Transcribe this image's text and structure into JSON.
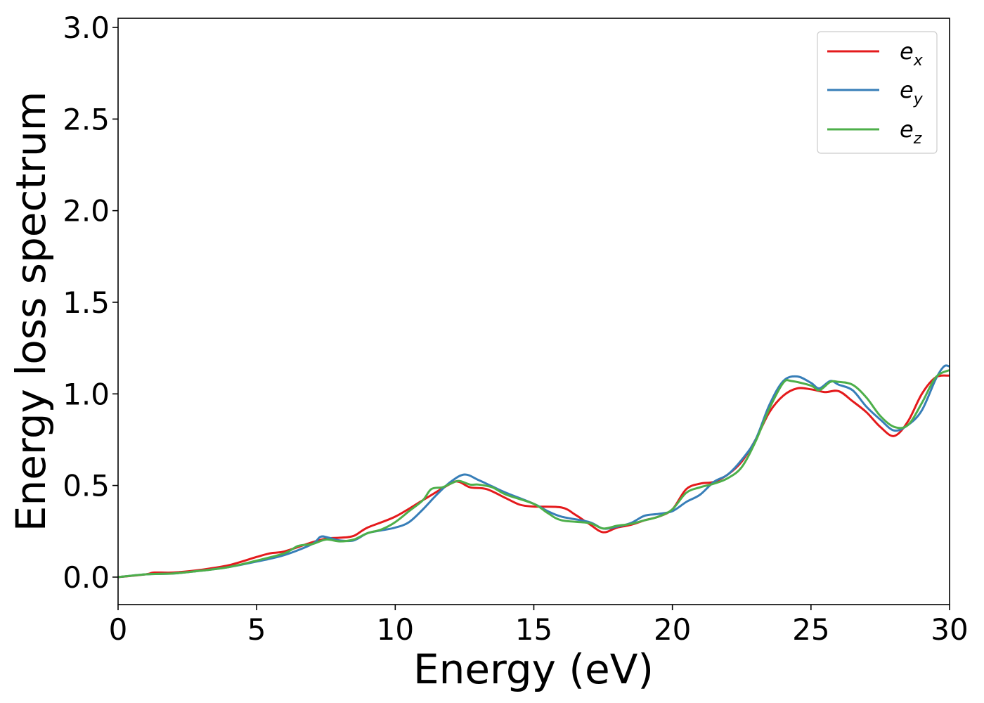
{
  "chart_data": {
    "type": "line",
    "title": "",
    "xlabel": "Energy (eV)",
    "ylabel": "Energy loss spectrum",
    "xlim": [
      0,
      30
    ],
    "ylim": [
      -0.15,
      3.05
    ],
    "xticks": [
      0,
      5,
      10,
      15,
      20,
      25,
      30
    ],
    "xtick_labels": [
      "0",
      "5",
      "10",
      "15",
      "20",
      "25",
      "30"
    ],
    "yticks": [
      0.0,
      0.5,
      1.0,
      1.5,
      2.0,
      2.5,
      3.0
    ],
    "ytick_labels": [
      "0.0",
      "0.5",
      "1.0",
      "1.5",
      "2.0",
      "2.5",
      "3.0"
    ],
    "grid": false,
    "legend_position": "top-right",
    "series": [
      {
        "name": "e_x",
        "legend_base": "e",
        "legend_sub": "x",
        "color": "#e41a1c",
        "points": [
          [
            0,
            0.0
          ],
          [
            1,
            0.015
          ],
          [
            1.3,
            0.025
          ],
          [
            2,
            0.025
          ],
          [
            3,
            0.04
          ],
          [
            4,
            0.065
          ],
          [
            5,
            0.11
          ],
          [
            5.5,
            0.13
          ],
          [
            6,
            0.14
          ],
          [
            7,
            0.19
          ],
          [
            7.5,
            0.21
          ],
          [
            8,
            0.215
          ],
          [
            8.5,
            0.225
          ],
          [
            9,
            0.27
          ],
          [
            10,
            0.33
          ],
          [
            11,
            0.42
          ],
          [
            12,
            0.51
          ],
          [
            12.3,
            0.52
          ],
          [
            12.7,
            0.49
          ],
          [
            13.3,
            0.48
          ],
          [
            14,
            0.43
          ],
          [
            14.5,
            0.395
          ],
          [
            15,
            0.385
          ],
          [
            16,
            0.38
          ],
          [
            16.5,
            0.34
          ],
          [
            17,
            0.29
          ],
          [
            17.5,
            0.245
          ],
          [
            18,
            0.27
          ],
          [
            18.5,
            0.285
          ],
          [
            19,
            0.31
          ],
          [
            19.5,
            0.33
          ],
          [
            20,
            0.37
          ],
          [
            20.5,
            0.48
          ],
          [
            21,
            0.51
          ],
          [
            21.5,
            0.52
          ],
          [
            22,
            0.56
          ],
          [
            22.5,
            0.63
          ],
          [
            23,
            0.75
          ],
          [
            23.5,
            0.9
          ],
          [
            24,
            0.99
          ],
          [
            24.5,
            1.03
          ],
          [
            25,
            1.025
          ],
          [
            25.5,
            1.01
          ],
          [
            26,
            1.015
          ],
          [
            26.5,
            0.96
          ],
          [
            27,
            0.9
          ],
          [
            27.5,
            0.82
          ],
          [
            28,
            0.77
          ],
          [
            28.5,
            0.85
          ],
          [
            29,
            1.0
          ],
          [
            29.5,
            1.09
          ],
          [
            30,
            1.1
          ]
        ]
      },
      {
        "name": "e_y",
        "legend_base": "e",
        "legend_sub": "y",
        "color": "#377eb8",
        "points": [
          [
            0,
            0.0
          ],
          [
            1,
            0.015
          ],
          [
            2,
            0.02
          ],
          [
            3,
            0.035
          ],
          [
            4,
            0.055
          ],
          [
            5,
            0.085
          ],
          [
            6,
            0.12
          ],
          [
            7,
            0.18
          ],
          [
            7.3,
            0.22
          ],
          [
            7.6,
            0.215
          ],
          [
            8,
            0.2
          ],
          [
            8.5,
            0.2
          ],
          [
            9,
            0.24
          ],
          [
            9.5,
            0.255
          ],
          [
            10,
            0.27
          ],
          [
            10.5,
            0.3
          ],
          [
            11,
            0.37
          ],
          [
            11.5,
            0.45
          ],
          [
            12,
            0.52
          ],
          [
            12.5,
            0.56
          ],
          [
            13,
            0.53
          ],
          [
            13.5,
            0.495
          ],
          [
            14,
            0.46
          ],
          [
            15,
            0.4
          ],
          [
            15.5,
            0.36
          ],
          [
            16,
            0.33
          ],
          [
            17,
            0.3
          ],
          [
            17.5,
            0.265
          ],
          [
            18,
            0.275
          ],
          [
            18.5,
            0.295
          ],
          [
            19,
            0.335
          ],
          [
            19.5,
            0.345
          ],
          [
            20,
            0.36
          ],
          [
            20.5,
            0.41
          ],
          [
            21,
            0.45
          ],
          [
            21.5,
            0.52
          ],
          [
            22,
            0.56
          ],
          [
            22.5,
            0.64
          ],
          [
            23,
            0.75
          ],
          [
            23.5,
            0.94
          ],
          [
            24,
            1.07
          ],
          [
            24.5,
            1.095
          ],
          [
            25,
            1.06
          ],
          [
            25.3,
            1.03
          ],
          [
            25.7,
            1.07
          ],
          [
            26,
            1.05
          ],
          [
            26.5,
            1.02
          ],
          [
            27,
            0.93
          ],
          [
            27.5,
            0.86
          ],
          [
            28,
            0.8
          ],
          [
            28.5,
            0.83
          ],
          [
            29,
            0.91
          ],
          [
            29.5,
            1.08
          ],
          [
            29.8,
            1.15
          ],
          [
            30,
            1.15
          ]
        ]
      },
      {
        "name": "e_z",
        "legend_base": "e",
        "legend_sub": "z",
        "color": "#4daf4a",
        "points": [
          [
            0,
            0.0
          ],
          [
            1,
            0.015
          ],
          [
            2,
            0.02
          ],
          [
            3,
            0.035
          ],
          [
            4,
            0.055
          ],
          [
            5,
            0.09
          ],
          [
            6,
            0.13
          ],
          [
            6.5,
            0.17
          ],
          [
            7,
            0.18
          ],
          [
            7.5,
            0.205
          ],
          [
            8,
            0.195
          ],
          [
            8.5,
            0.205
          ],
          [
            9,
            0.24
          ],
          [
            9.5,
            0.26
          ],
          [
            10,
            0.3
          ],
          [
            10.5,
            0.36
          ],
          [
            11,
            0.42
          ],
          [
            11.3,
            0.48
          ],
          [
            11.7,
            0.49
          ],
          [
            12,
            0.51
          ],
          [
            12.3,
            0.525
          ],
          [
            12.7,
            0.505
          ],
          [
            13,
            0.505
          ],
          [
            13.5,
            0.49
          ],
          [
            14,
            0.45
          ],
          [
            15,
            0.4
          ],
          [
            15.5,
            0.35
          ],
          [
            16,
            0.31
          ],
          [
            17,
            0.295
          ],
          [
            17.5,
            0.265
          ],
          [
            18,
            0.28
          ],
          [
            18.5,
            0.29
          ],
          [
            19,
            0.31
          ],
          [
            19.5,
            0.33
          ],
          [
            20,
            0.37
          ],
          [
            20.5,
            0.46
          ],
          [
            21,
            0.49
          ],
          [
            21.5,
            0.51
          ],
          [
            22,
            0.54
          ],
          [
            22.5,
            0.6
          ],
          [
            23,
            0.74
          ],
          [
            23.5,
            0.92
          ],
          [
            24,
            1.06
          ],
          [
            24.3,
            1.07
          ],
          [
            25,
            1.045
          ],
          [
            25.3,
            1.02
          ],
          [
            25.7,
            1.065
          ],
          [
            26,
            1.065
          ],
          [
            26.5,
            1.05
          ],
          [
            27,
            0.98
          ],
          [
            27.5,
            0.88
          ],
          [
            28,
            0.82
          ],
          [
            28.5,
            0.83
          ],
          [
            29,
            0.95
          ],
          [
            29.5,
            1.09
          ],
          [
            30,
            1.13
          ]
        ]
      }
    ]
  }
}
